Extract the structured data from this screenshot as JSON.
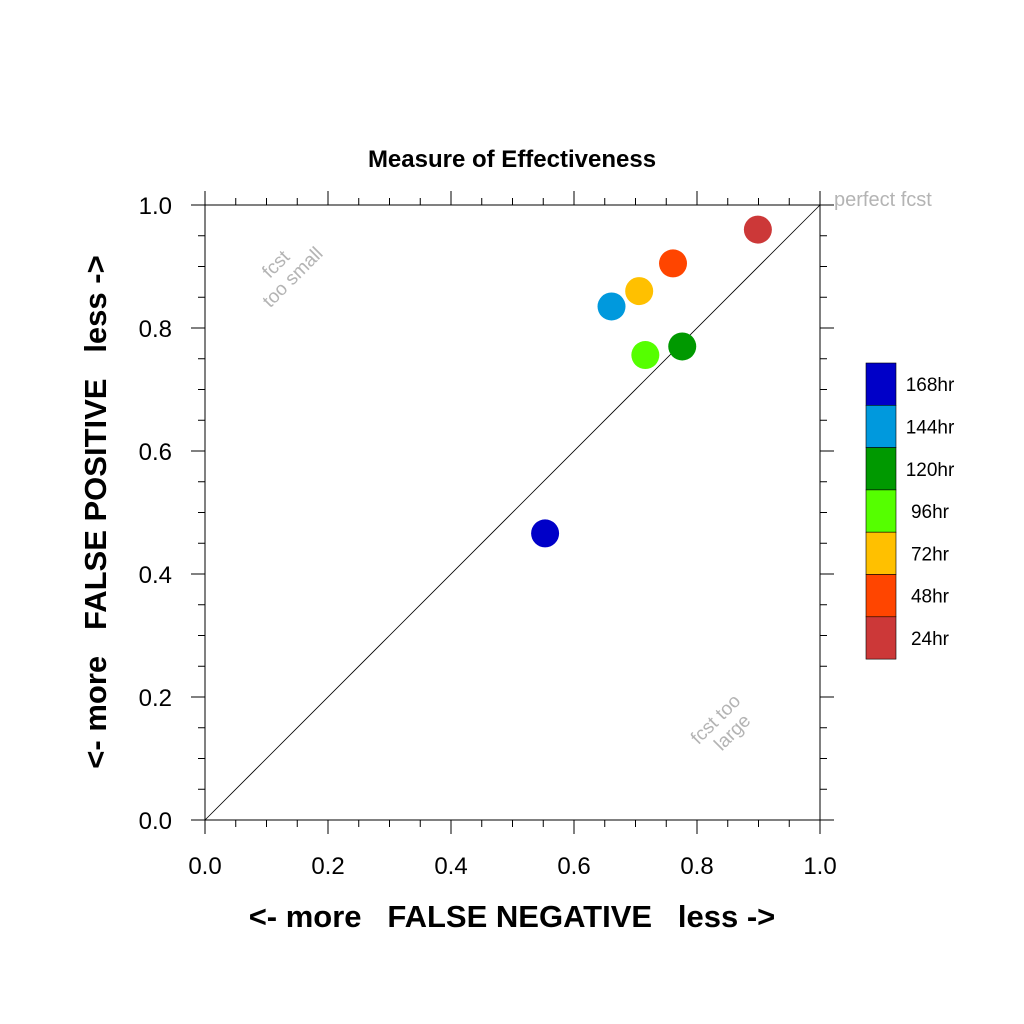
{
  "chart_data": {
    "type": "scatter",
    "title": "Measure of Effectiveness",
    "xlabel": "<- more   FALSE NEGATIVE   less ->",
    "ylabel": "<- more   FALSE POSITIVE   less ->",
    "xlim": [
      0.0,
      1.0
    ],
    "ylim": [
      0.0,
      1.0
    ],
    "x_ticks": [
      "0.0",
      "0.2",
      "0.4",
      "0.6",
      "0.8",
      "1.0"
    ],
    "y_ticks": [
      "0.0",
      "0.2",
      "0.4",
      "0.6",
      "0.8",
      "1.0"
    ],
    "grid": false,
    "diagonal": true,
    "annotations": {
      "perfect": "perfect fcst",
      "small_line1": "fcst",
      "small_line2": "too small",
      "large_line1": "fcst too",
      "large_line2": "large"
    },
    "legend_position": "right",
    "series": [
      {
        "name": "168hr",
        "color": "#0000c8",
        "x": 0.553,
        "y": 0.466
      },
      {
        "name": "144hr",
        "color": "#0099dd",
        "x": 0.661,
        "y": 0.835
      },
      {
        "name": "120hr",
        "color": "#009900",
        "x": 0.776,
        "y": 0.77
      },
      {
        "name": "96hr",
        "color": "#55ff00",
        "x": 0.716,
        "y": 0.756
      },
      {
        "name": "72hr",
        "color": "#ffc000",
        "x": 0.706,
        "y": 0.86
      },
      {
        "name": "48hr",
        "color": "#ff4500",
        "x": 0.761,
        "y": 0.905
      },
      {
        "name": "24hr",
        "color": "#cc3838",
        "x": 0.899,
        "y": 0.96
      }
    ]
  }
}
